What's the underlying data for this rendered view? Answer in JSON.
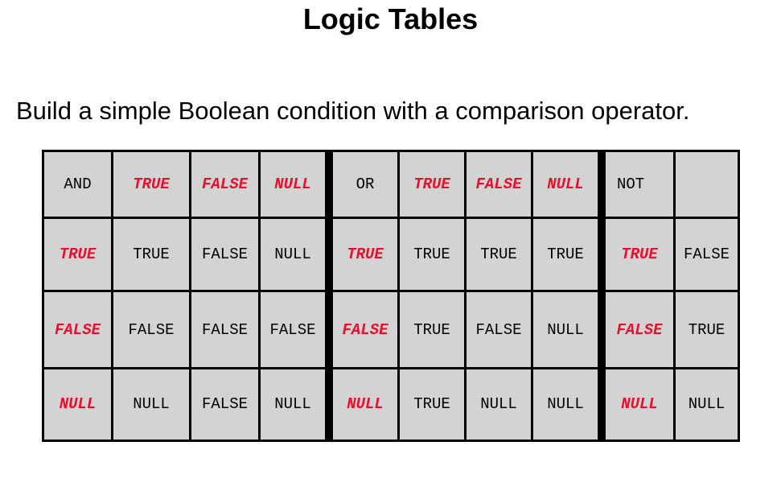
{
  "title": "Logic Tables",
  "subtitle": "Build a simple Boolean condition with a comparison operator.",
  "colors": {
    "literal": "#e8102e",
    "cell_bg": "#d3d3d3",
    "grid": "#000000"
  },
  "and_table": {
    "operator": "AND",
    "columns": [
      "TRUE",
      "FALSE",
      "NULL"
    ],
    "rows": [
      {
        "label": "TRUE",
        "values": [
          "TRUE",
          "FALSE",
          "NULL"
        ]
      },
      {
        "label": "FALSE",
        "values": [
          "FALSE",
          "FALSE",
          "FALSE"
        ]
      },
      {
        "label": "NULL",
        "values": [
          "NULL",
          "FALSE",
          "NULL"
        ]
      }
    ]
  },
  "or_table": {
    "operator": "OR",
    "columns": [
      "TRUE",
      "FALSE",
      "NULL"
    ],
    "rows": [
      {
        "label": "TRUE",
        "values": [
          "TRUE",
          "TRUE",
          "TRUE"
        ]
      },
      {
        "label": "FALSE",
        "values": [
          "TRUE",
          "FALSE",
          "NULL"
        ]
      },
      {
        "label": "NULL",
        "values": [
          "TRUE",
          "NULL",
          "NULL"
        ]
      }
    ]
  },
  "not_table": {
    "operator": "NOT",
    "rows": [
      {
        "label": "TRUE",
        "value": "FALSE"
      },
      {
        "label": "FALSE",
        "value": "TRUE"
      },
      {
        "label": "NULL",
        "value": "NULL"
      }
    ]
  }
}
